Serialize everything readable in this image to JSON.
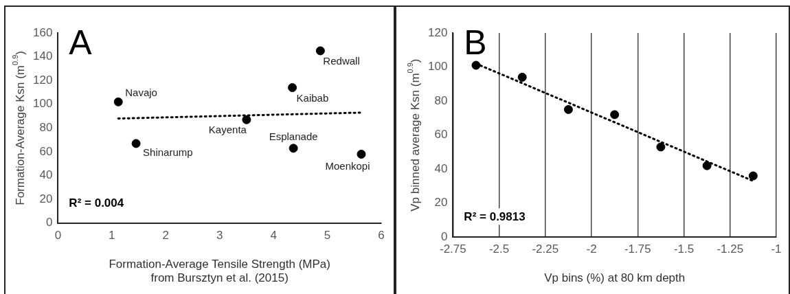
{
  "chart_data": [
    {
      "type": "scatter",
      "title": "A",
      "xlabel": "Formation-Average Tensile Strength (MPa)\nfrom Bursztyn et al. (2015)",
      "ylabel": "Formation-Average Ksn (m$^{0.9}$)",
      "xlim": [
        0,
        6
      ],
      "xticks": [
        0,
        1,
        2,
        3,
        4,
        5,
        6
      ],
      "ylim": [
        0,
        160
      ],
      "yticks": [
        0,
        20,
        40,
        60,
        80,
        100,
        120,
        140,
        160
      ],
      "grid": false,
      "legend": false,
      "marker": "circle",
      "series": [
        {
          "type": "scatter",
          "color": "#000000",
          "x": [
            1.12,
            1.45,
            3.5,
            4.35,
            4.37,
            4.87,
            5.63
          ],
          "values": [
            102,
            67,
            87,
            114,
            63,
            145,
            58
          ]
        },
        {
          "type": "line",
          "color": "#000000",
          "line_style": "dotted",
          "marker": "none",
          "x": [
            1.12,
            5.63
          ],
          "values": [
            88,
            93
          ]
        }
      ],
      "annotations": [
        {
          "text": "Navajo",
          "x": 1.12,
          "y": 102
        },
        {
          "text": "Shinarump",
          "x": 1.45,
          "y": 67
        },
        {
          "text": "Kayenta",
          "x": 3.5,
          "y": 87
        },
        {
          "text": "Kaibab",
          "x": 4.35,
          "y": 114
        },
        {
          "text": "Esplanade",
          "x": 4.37,
          "y": 63
        },
        {
          "text": "Redwall",
          "x": 4.87,
          "y": 145
        },
        {
          "text": "Moenkopi",
          "x": 5.63,
          "y": 58
        },
        "R² = 0.004"
      ]
    },
    {
      "type": "scatter",
      "title": "B",
      "xlabel": "Vp bins (%) at 80 km depth",
      "ylabel": "Vp binned average Ksn (m$^{0.9}$)",
      "xlim": [
        -2.75,
        -1
      ],
      "xticks": [
        -2.75,
        -2.5,
        -2.25,
        -2,
        -1.75,
        -1.5,
        -1.25,
        -1
      ],
      "ylim": [
        0,
        120
      ],
      "yticks": [
        0,
        20,
        40,
        60,
        80,
        100,
        120
      ],
      "grid": "x",
      "legend": false,
      "marker": "circle",
      "series": [
        {
          "type": "scatter",
          "color": "#000000",
          "x": [
            -2.625,
            -2.375,
            -2.125,
            -1.875,
            -1.625,
            -1.375,
            -1.125
          ],
          "values": [
            101,
            94,
            75,
            72,
            53,
            42,
            36
          ]
        },
        {
          "type": "line",
          "color": "#000000",
          "line_style": "dotted",
          "marker": "none",
          "x": [
            -2.625,
            -1.125
          ],
          "values": [
            102,
            33
          ]
        }
      ],
      "annotations": [
        "R² = 0.9813"
      ]
    }
  ]
}
